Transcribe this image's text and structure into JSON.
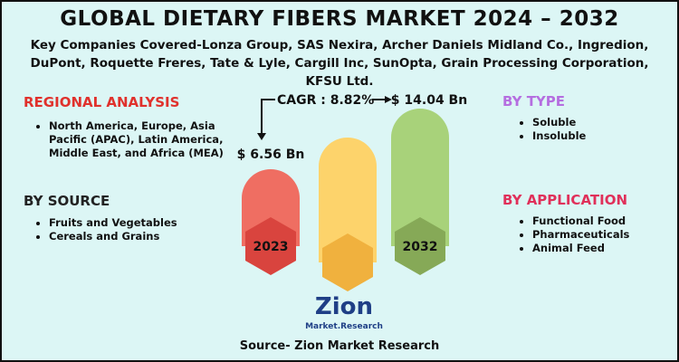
{
  "header": {
    "title": "GLOBAL DIETARY FIBERS MARKET 2024 – 2032",
    "subtitle": "Key Companies Covered-Lonza Group, SAS Nexira, Archer Daniels Midland Co., Ingredion, DuPont, Roquette Freres, Tate & Lyle, Cargill Inc, SunOpta, Grain Processing Corporation, KFSU Ltd."
  },
  "regional_analysis": {
    "heading": "REGIONAL ANALYSIS",
    "items": [
      "North America, Europe, Asia Pacific (APAC), Latin America, Middle East, and Africa (MEA)"
    ]
  },
  "by_source": {
    "heading": "BY SOURCE",
    "items": [
      "Fruits and Vegetables",
      "Cereals and Grains"
    ]
  },
  "by_type": {
    "heading": "BY TYPE",
    "items": [
      "Soluble",
      "Insoluble"
    ]
  },
  "by_application": {
    "heading": "BY APPLICATION",
    "items": [
      "Functional Food",
      "Pharmaceuticals",
      "Animal Feed"
    ]
  },
  "market": {
    "cagr": "CAGR : 8.82%",
    "start": {
      "value": "$ 6.56 Bn",
      "year": "2023"
    },
    "end": {
      "value": "$ 14.04 Bn",
      "year": "2032"
    }
  },
  "logo": {
    "name": "Zion",
    "tagline": "Market.Research"
  },
  "source": "Source- Zion Market Research"
}
